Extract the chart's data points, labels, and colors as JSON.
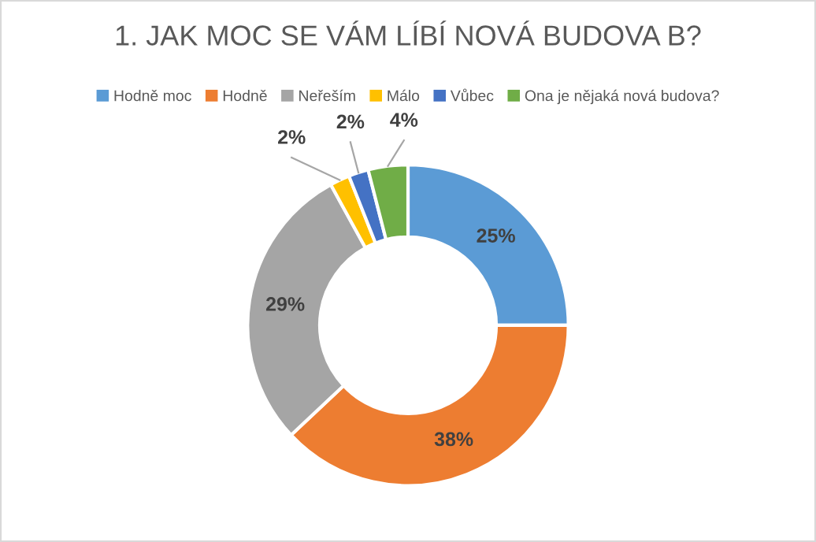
{
  "chart_data": {
    "type": "donut",
    "title": "1. JAK MOC SE VÁM LÍBÍ NOVÁ BUDOVA B?",
    "categories": [
      "Hodně moc",
      "Hodně",
      "Neřeším",
      "Málo",
      "Vůbec",
      "Ona je nějaká nová budova?"
    ],
    "values": [
      25,
      38,
      29,
      2,
      2,
      4
    ],
    "colors": [
      "#5b9bd5",
      "#ed7d31",
      "#a5a5a5",
      "#ffc000",
      "#4472c4",
      "#70ad47"
    ],
    "value_labels": [
      "25%",
      "38%",
      "29%",
      "2%",
      "2%",
      "4%"
    ],
    "legend": "top"
  }
}
